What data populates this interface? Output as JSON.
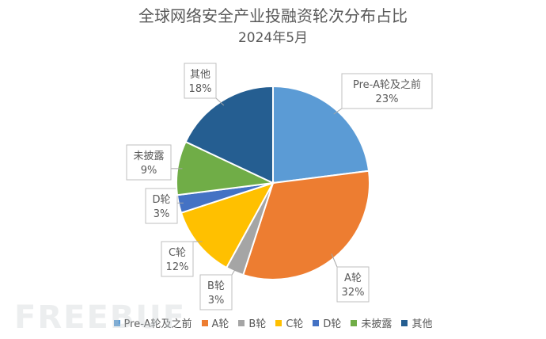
{
  "title": "全球网络安全产业投融资轮次分布占比",
  "subtitle": "2024年5月",
  "watermark": "FREEBUF",
  "chart_data": {
    "type": "pie",
    "title": "全球网络安全产业投融资轮次分布占比",
    "subtitle": "2024年5月",
    "slices": [
      {
        "label": "Pre-A轮及之前",
        "value": 23,
        "value_label": "23%",
        "color": "#5B9BD5"
      },
      {
        "label": "A轮",
        "value": 32,
        "value_label": "32%",
        "color": "#ED7D31"
      },
      {
        "label": "B轮",
        "value": 3,
        "value_label": "3%",
        "color": "#A5A5A5"
      },
      {
        "label": "C轮",
        "value": 12,
        "value_label": "12%",
        "color": "#FFC000"
      },
      {
        "label": "D轮",
        "value": 3,
        "value_label": "3%",
        "color": "#4472C4"
      },
      {
        "label": "未披露",
        "value": 9,
        "value_label": "9%",
        "color": "#70AD47"
      },
      {
        "label": "其他",
        "value": 18,
        "value_label": "18%",
        "color": "#255E91"
      }
    ],
    "legend_position": "bottom"
  }
}
